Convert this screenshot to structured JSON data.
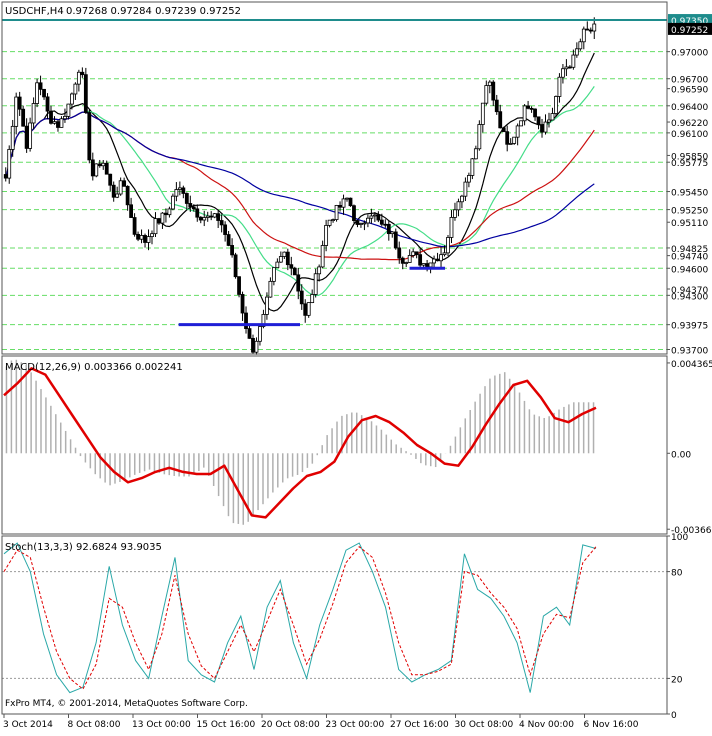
{
  "chart_data": [
    {
      "type": "candlestick",
      "title": "USDCHF,H4",
      "ohlc_label": "0.97268 0.97284 0.97239 0.97252",
      "ylim": [
        0.9365,
        0.9755
      ],
      "y_ticks": [
        "0.97350",
        "0.97252",
        "0.97000",
        "0.96700",
        "0.96590",
        "0.96400",
        "0.96220",
        "0.96100",
        "0.95850",
        "0.95775",
        "0.95450",
        "0.95250",
        "0.95110",
        "0.94825",
        "0.94740",
        "0.94600",
        "0.94370",
        "0.94300",
        "0.93975",
        "0.93700"
      ],
      "y_highlight": {
        "0.97350": "#1e8c8c",
        "0.97252": "#000000"
      },
      "horizontal_levels": [
        0.97,
        0.967,
        0.964,
        0.961,
        0.95775,
        0.9545,
        0.9525,
        0.94825,
        0.946,
        0.943,
        0.93975,
        0.937
      ],
      "resistance_level": 0.9735,
      "support_lines": [
        {
          "price": 0.93975,
          "x_from": 0.295,
          "x_to": 0.5
        },
        {
          "price": 0.946,
          "x_from": 0.685,
          "x_to": 0.745
        }
      ],
      "key_prices": [
        0.956,
        0.9655,
        0.9595,
        0.9672,
        0.9628,
        0.9618,
        0.9645,
        0.969,
        0.956,
        0.9582,
        0.954,
        0.9555,
        0.95,
        0.949,
        0.951,
        0.952,
        0.955,
        0.9535,
        0.952,
        0.9515,
        0.9515,
        0.948,
        0.942,
        0.9368,
        0.94,
        0.9455,
        0.9478,
        0.9455,
        0.9405,
        0.945,
        0.951,
        0.9525,
        0.9538,
        0.95,
        0.9525,
        0.9508,
        0.95,
        0.947,
        0.9475,
        0.9465,
        0.947,
        0.948,
        0.953,
        0.9555,
        0.96,
        0.9675,
        0.9625,
        0.959,
        0.9625,
        0.9646,
        0.9615,
        0.9628,
        0.968,
        0.969,
        0.972,
        0.9725
      ]
    },
    {
      "type": "line",
      "title": "MACD(12,26,9) 0.003366 0.002241",
      "ylim": [
        -0.0039,
        0.0047
      ],
      "y_ticks": [
        "0.004365",
        "0.00",
        "-0.003669"
      ],
      "series": [
        {
          "color": "#e00000",
          "values": [
            0.0028,
            0.0034,
            0.0041,
            0.0038,
            0.0028,
            0.0018,
            0.0008,
            -0.0002,
            -0.0009,
            -0.0014,
            -0.0012,
            -0.0009,
            -0.0007,
            -0.0009,
            -0.001,
            -0.001,
            -0.0006,
            -0.0018,
            -0.003,
            -0.0031,
            -0.0024,
            -0.0017,
            -0.0011,
            -0.0009,
            -0.0004,
            0.0008,
            0.0016,
            0.0018,
            0.0015,
            0.001,
            0.0004,
            0.0,
            -0.0005,
            -0.0006,
            0.0003,
            0.0014,
            0.0024,
            0.0033,
            0.0035,
            0.0027,
            0.0017,
            0.0015,
            0.0019,
            0.0022
          ]
        }
      ]
    },
    {
      "type": "line",
      "title": "Stoch(13,3,3) 92.6824 93.9035",
      "ylim": [
        0,
        100
      ],
      "y_ticks": [
        "100",
        "80",
        "20",
        "0"
      ],
      "series": [
        {
          "color": "#2aa8a8",
          "values": [
            90,
            96,
            80,
            45,
            22,
            12,
            15,
            40,
            83,
            50,
            30,
            20,
            55,
            88,
            30,
            22,
            18,
            40,
            55,
            25,
            60,
            75,
            40,
            20,
            50,
            70,
            92,
            96,
            80,
            60,
            25,
            18,
            22,
            25,
            30,
            90,
            70,
            65,
            55,
            40,
            12,
            55,
            60,
            50,
            95,
            93
          ]
        },
        {
          "color": "#e00000",
          "values": [
            80,
            92,
            88,
            60,
            35,
            20,
            14,
            28,
            65,
            60,
            40,
            25,
            45,
            78,
            45,
            27,
            20,
            35,
            50,
            35,
            52,
            70,
            50,
            28,
            42,
            62,
            85,
            94,
            88,
            68,
            40,
            22,
            22,
            24,
            28,
            80,
            78,
            68,
            60,
            48,
            22,
            45,
            56,
            54,
            85,
            94
          ]
        }
      ]
    }
  ],
  "x_axis_labels": [
    "3 Oct 2014",
    "8 Oct 08:00",
    "13 Oct 00:00",
    "15 Oct 16:00",
    "20 Oct 08:00",
    "23 Oct 00:00",
    "27 Oct 16:00",
    "30 Oct 08:00",
    "4 Nov 00:00",
    "6 Nov 16:00"
  ],
  "copyright": "FxPro MT4, © 2001-2014, MetaQuotes Software Corp.",
  "colors": {
    "background": "#ffffff",
    "candle": "#000000",
    "grid": "#66dd66",
    "resistance": "#1e8c8c",
    "support": "#1f1fd6",
    "ma_black": "#000000",
    "ma_green": "#44dd88",
    "ma_red": "#cc1111",
    "ma_blue": "#0000a0",
    "macd_hist": "#b0b0b0",
    "macd_signal": "#e00000",
    "stoch_main": "#2aa8a8",
    "stoch_signal": "#e00000"
  }
}
